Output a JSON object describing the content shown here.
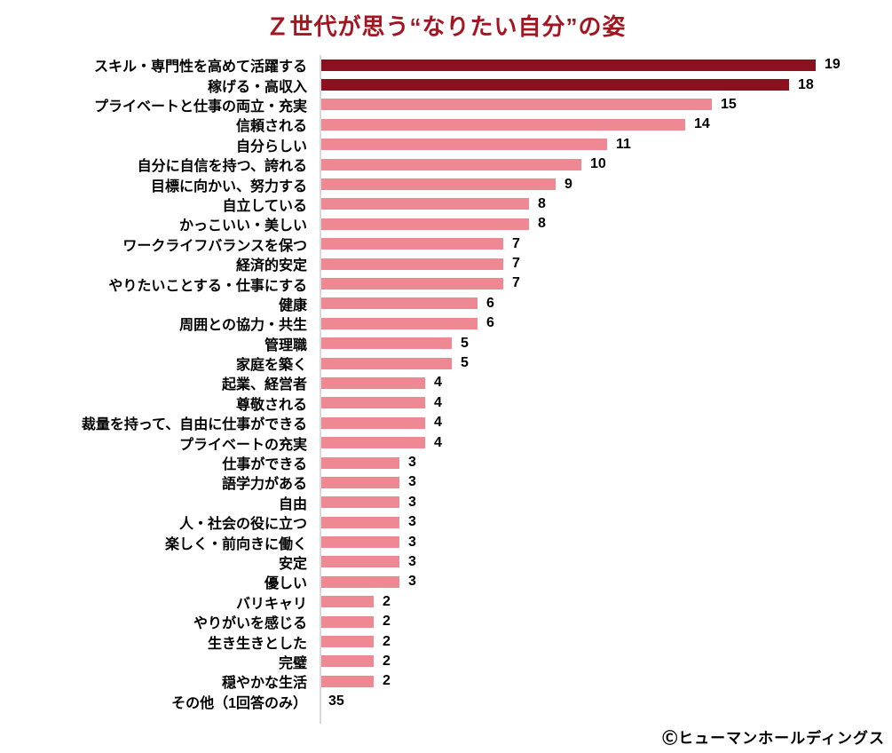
{
  "title": "Ｚ世代が思う“なりたい自分”の姿",
  "credit": "Ⓒヒューマンホールディングス",
  "colors": {
    "title": "#a31621",
    "bar_highlight": "#8b1120",
    "bar_normal": "#ee8893",
    "axis": "#d9d9d9",
    "text": "#000000"
  },
  "chart_data": {
    "type": "bar",
    "orientation": "horizontal",
    "title": "Ｚ世代が思う“なりたい自分”の姿",
    "xlabel": "",
    "ylabel": "",
    "xlim": [
      0,
      19
    ],
    "grid": false,
    "legend": "none",
    "value_labels": "end-of-bar",
    "categories": [
      "スキル・専門性を高めて活躍する",
      "稼げる・高収入",
      "プライベートと仕事の両立・充実",
      "信頼される",
      "自分らしい",
      "自分に自信を持つ、誇れる",
      "目標に向かい、努力する",
      "自立している",
      "かっこいい・美しい",
      "ワークライフバランスを保つ",
      "経済的安定",
      "やりたいことする・仕事にする",
      "健康",
      "周囲との協力・共生",
      "管理職",
      "家庭を築く",
      "起業、経営者",
      "尊敬される",
      "裁量を持って、自由に仕事ができる",
      "プライベートの充実",
      "仕事ができる",
      "語学力がある",
      "自由",
      "人・社会の役に立つ",
      "楽しく・前向きに働く",
      "安定",
      "優しい",
      "バリキャリ",
      "やりがいを感じる",
      "生き生きとした",
      "完璧",
      "穏やかな生活",
      "その他（1回答のみ）"
    ],
    "values": [
      19,
      18,
      15,
      14,
      11,
      10,
      9,
      8,
      8,
      7,
      7,
      7,
      6,
      6,
      5,
      5,
      4,
      4,
      4,
      4,
      3,
      3,
      3,
      3,
      3,
      3,
      3,
      2,
      2,
      2,
      2,
      2,
      35
    ],
    "highlight_indices": [
      0,
      1
    ],
    "no_bar_indices": [
      32
    ]
  }
}
